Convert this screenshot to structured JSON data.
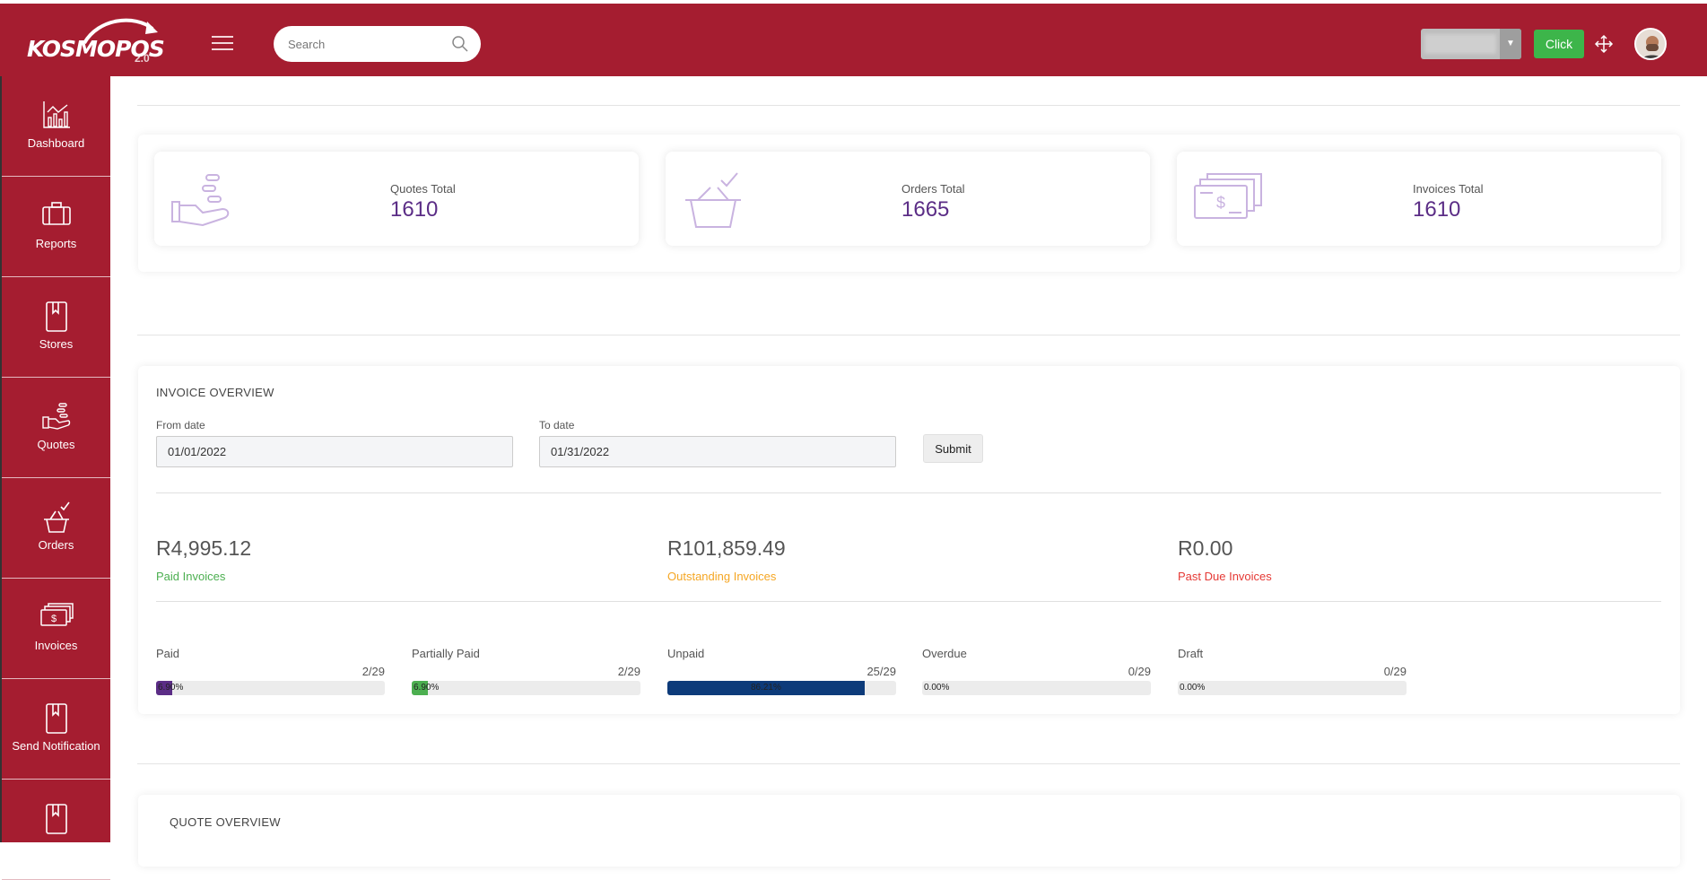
{
  "header": {
    "logo_text": "KOSMOPOS",
    "logo_version": "2.0",
    "search_placeholder": "Search",
    "click_label": "Click",
    "brand_color": "#a51d30"
  },
  "sidebar": {
    "items": [
      {
        "label": "Dashboard",
        "icon": "chart-icon"
      },
      {
        "label": "Reports",
        "icon": "briefcase-icon"
      },
      {
        "label": "Stores",
        "icon": "book-icon"
      },
      {
        "label": "Quotes",
        "icon": "hand-coins-icon"
      },
      {
        "label": "Orders",
        "icon": "basket-icon"
      },
      {
        "label": "Invoices",
        "icon": "money-icon"
      },
      {
        "label": "Send Notification",
        "icon": "book-icon"
      },
      {
        "label": "",
        "icon": "book-icon"
      }
    ]
  },
  "stats": [
    {
      "label": "Quotes Total",
      "value": "1610",
      "icon": "hand-coins-icon"
    },
    {
      "label": "Orders Total",
      "value": "1665",
      "icon": "basket-icon"
    },
    {
      "label": "Invoices Total",
      "value": "1610",
      "icon": "money-icon"
    }
  ],
  "invoice_overview": {
    "title": "INVOICE OVERVIEW",
    "from_label": "From date",
    "from_value": "01/01/2022",
    "to_label": "To date",
    "to_value": "01/31/2022",
    "submit_label": "Submit",
    "amounts": [
      {
        "amount": "R4,995.12",
        "label": "Paid Invoices",
        "color": "#4caf50"
      },
      {
        "amount": "R101,859.49",
        "label": "Outstanding Invoices",
        "color": "#f5a623"
      },
      {
        "amount": "R0.00",
        "label": "Past Due Invoices",
        "color": "#e53935"
      }
    ],
    "progress": [
      {
        "label": "Paid",
        "count": "2/29",
        "percent_text": "6.90%",
        "percent": 6.9,
        "color": "#5b2d86"
      },
      {
        "label": "Partially Paid",
        "count": "2/29",
        "percent_text": "6.90%",
        "percent": 6.9,
        "color": "#4caf50"
      },
      {
        "label": "Unpaid",
        "count": "25/29",
        "percent_text": "86.21%",
        "percent": 86.21,
        "color": "#0d3b7a"
      },
      {
        "label": "Overdue",
        "count": "0/29",
        "percent_text": "0.00%",
        "percent": 0,
        "color": "#e53935"
      },
      {
        "label": "Draft",
        "count": "0/29",
        "percent_text": "0.00%",
        "percent": 0,
        "color": "#999999"
      }
    ]
  },
  "quote_overview": {
    "title": "QUOTE OVERVIEW"
  }
}
